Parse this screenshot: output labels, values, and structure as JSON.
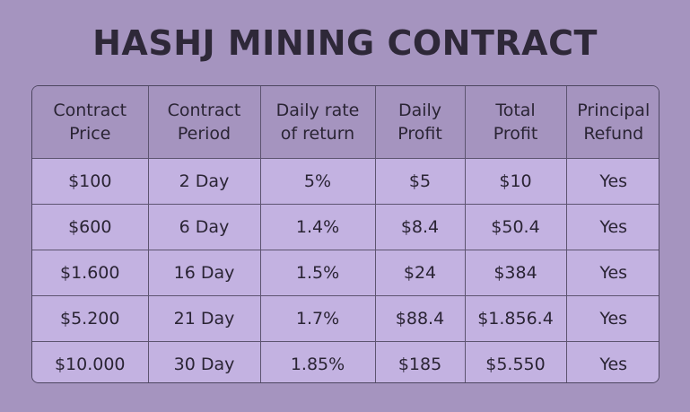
{
  "title": "HASHJ MINING CONTRACT",
  "table": {
    "headers": [
      "Contract\nPrice",
      "Contract\nPeriod",
      "Daily rate\nof return",
      "Daily\nProfit",
      "Total\nProfit",
      "Principal\nRefund"
    ],
    "rows": [
      [
        "$100",
        "2 Day",
        "5%",
        "$5",
        "$10",
        "Yes"
      ],
      [
        "$600",
        "6 Day",
        "1.4%",
        "$8.4",
        "$50.4",
        "Yes"
      ],
      [
        "$1.600",
        "16 Day",
        "1.5%",
        "$24",
        "$384",
        "Yes"
      ],
      [
        "$5.200",
        "21 Day",
        "1.7%",
        "$88.4",
        "$1.856.4",
        "Yes"
      ],
      [
        "$10.000",
        "30 Day",
        "1.85%",
        "$185",
        "$5.550",
        "Yes"
      ]
    ]
  }
}
